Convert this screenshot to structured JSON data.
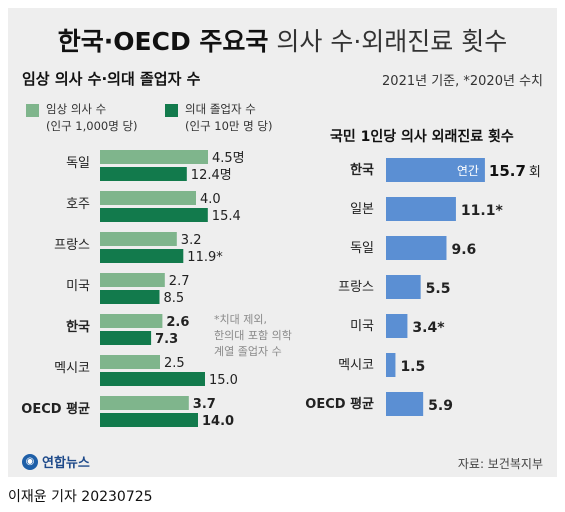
{
  "title_bold": "한국·OECD 주요국",
  "title_light": "의사 수·외래진료 횟수",
  "left_subtitle": "임상 의사 수·의대 졸업자 수",
  "date_note": "2021년 기준, *2020년 수치",
  "legend": [
    {
      "label": "임상 의사 수",
      "sub": "(인구 1,000명 당)",
      "color": "#7fb58c"
    },
    {
      "label": "의대 졸업자 수",
      "sub": "(인구 10만 명 당)",
      "color": "#127a4c"
    }
  ],
  "footnote": [
    "*치대 제외,",
    "한의대 포함 의학",
    "계열 졸업자 수"
  ],
  "right_title": "국민 1인당 의사 외래진료 횟수",
  "right_inner_label": "연간",
  "right_unit": "회",
  "logo_text": "연합뉴스",
  "source": "자료: 보건복지부",
  "credit": "이재윤 기자  20230725",
  "chart_data": [
    {
      "type": "bar",
      "orientation": "horizontal",
      "categories": [
        "독일",
        "호주",
        "프랑스",
        "미국",
        "한국",
        "멕시코",
        "OECD 평균"
      ],
      "highlight": [
        "한국",
        "OECD 평균"
      ],
      "series": [
        {
          "name": "임상 의사 수",
          "values": [
            4.5,
            4.0,
            3.2,
            2.7,
            2.6,
            2.5,
            3.7
          ],
          "labels": [
            "4.5명",
            "4.0",
            "3.2",
            "2.7",
            "2.6",
            "2.5",
            "3.7"
          ],
          "color": "#7fb58c"
        },
        {
          "name": "의대 졸업자 수",
          "values": [
            12.4,
            15.4,
            11.9,
            8.5,
            7.3,
            15.0,
            14.0
          ],
          "labels": [
            "12.4명",
            "15.4",
            "11.9*",
            "8.5",
            "7.3",
            "15.0",
            "14.0"
          ],
          "color": "#127a4c"
        }
      ]
    },
    {
      "type": "bar",
      "orientation": "horizontal",
      "categories": [
        "한국",
        "일본",
        "독일",
        "프랑스",
        "미국",
        "멕시코",
        "OECD 평균"
      ],
      "highlight": [
        "한국",
        "OECD 평균"
      ],
      "series": [
        {
          "values": [
            15.7,
            11.1,
            9.6,
            5.5,
            3.4,
            1.5,
            5.9
          ],
          "labels": [
            "15.7",
            "11.1*",
            "9.6",
            "5.5",
            "3.4*",
            "1.5",
            "5.9"
          ],
          "color": "#5b8fd3"
        }
      ]
    }
  ]
}
